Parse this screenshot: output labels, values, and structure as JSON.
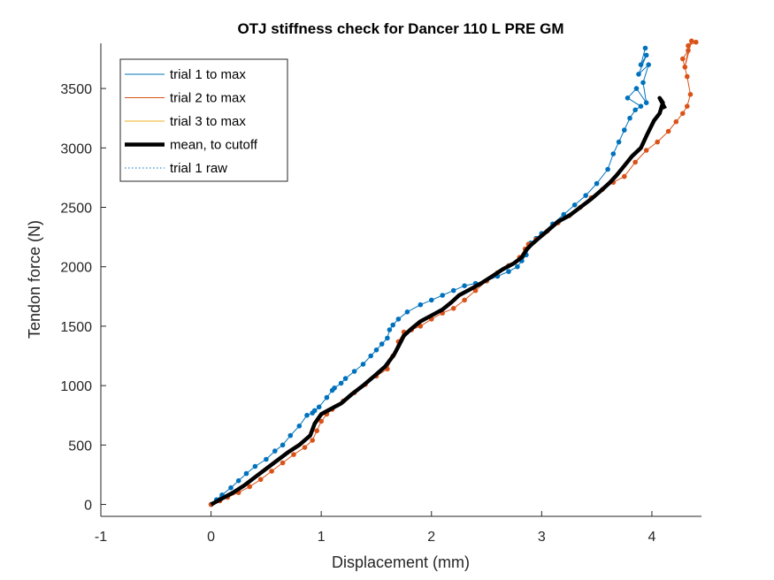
{
  "chart_data": {
    "type": "line",
    "title": "OTJ stiffness check for Dancer 110 L PRE GM",
    "xlabel": "Displacement (mm)",
    "ylabel": "Tendon force (N)",
    "xlim": [
      -1,
      4.45
    ],
    "ylim": [
      -100,
      3880
    ],
    "xticks": [
      -1,
      0,
      1,
      2,
      3,
      4
    ],
    "yticks": [
      0,
      500,
      1000,
      1500,
      2000,
      2500,
      3000,
      3500
    ],
    "xtick_labels": [
      "-1",
      "0",
      "1",
      "2",
      "3",
      "4"
    ],
    "ytick_labels": [
      "0",
      "500",
      "1000",
      "1500",
      "2000",
      "2500",
      "3000",
      "3500"
    ],
    "grid": false,
    "legend_position": "top-left",
    "series": [
      {
        "name": "trial 1 to max",
        "color": "#0072BD",
        "style": "solid-with-markers",
        "x": [
          0,
          0.05,
          0.1,
          0.18,
          0.25,
          0.32,
          0.4,
          0.5,
          0.58,
          0.65,
          0.72,
          0.8,
          0.87,
          0.92,
          0.94,
          0.98,
          1.05,
          1.1,
          1.12,
          1.18,
          1.22,
          1.3,
          1.38,
          1.45,
          1.5,
          1.55,
          1.6,
          1.62,
          1.65,
          1.7,
          1.78,
          1.9,
          2.0,
          2.1,
          2.2,
          2.3,
          2.4,
          2.5,
          2.6,
          2.7,
          2.78,
          2.82,
          2.86,
          2.9,
          2.95,
          3.0,
          3.1,
          3.2,
          3.3,
          3.4,
          3.5,
          3.6,
          3.65,
          3.7,
          3.75,
          3.8,
          3.85,
          3.9,
          3.78,
          3.86,
          3.95,
          3.92,
          3.97,
          3.88,
          3.95,
          3.9,
          3.94
        ],
        "y": [
          0,
          40,
          80,
          140,
          200,
          260,
          320,
          380,
          450,
          500,
          580,
          660,
          750,
          770,
          790,
          820,
          900,
          960,
          980,
          1020,
          1060,
          1120,
          1180,
          1250,
          1300,
          1350,
          1400,
          1470,
          1510,
          1560,
          1620,
          1680,
          1720,
          1760,
          1800,
          1840,
          1860,
          1880,
          1920,
          1960,
          2000,
          2050,
          2100,
          2200,
          2240,
          2280,
          2360,
          2440,
          2520,
          2600,
          2700,
          2820,
          2950,
          3050,
          3150,
          3250,
          3320,
          3350,
          3420,
          3500,
          3380,
          3550,
          3700,
          3620,
          3780,
          3700,
          3840
        ]
      },
      {
        "name": "trial 2 to max",
        "color": "#D95319",
        "style": "solid-with-markers",
        "x": [
          0,
          0.08,
          0.15,
          0.25,
          0.35,
          0.45,
          0.55,
          0.65,
          0.75,
          0.85,
          0.92,
          0.96,
          1.0,
          1.05,
          1.1,
          1.2,
          1.3,
          1.4,
          1.5,
          1.6,
          1.65,
          1.7,
          1.75,
          1.82,
          1.9,
          2.0,
          2.1,
          2.2,
          2.3,
          2.4,
          2.5,
          2.6,
          2.7,
          2.8,
          2.85,
          2.88,
          2.95,
          3.05,
          3.15,
          3.25,
          3.35,
          3.45,
          3.55,
          3.65,
          3.75,
          3.85,
          3.95,
          4.05,
          4.15,
          4.22,
          4.28,
          4.32,
          4.35,
          4.32,
          4.28,
          4.33,
          4.3,
          4.36,
          4.33,
          4.4
        ],
        "y": [
          0,
          30,
          60,
          100,
          150,
          210,
          280,
          350,
          420,
          480,
          540,
          620,
          700,
          760,
          800,
          870,
          940,
          1010,
          1080,
          1140,
          1250,
          1370,
          1450,
          1470,
          1500,
          1560,
          1610,
          1650,
          1720,
          1800,
          1880,
          1950,
          2010,
          2080,
          2150,
          2190,
          2230,
          2300,
          2370,
          2430,
          2500,
          2580,
          2650,
          2710,
          2760,
          2880,
          2980,
          3050,
          3140,
          3220,
          3290,
          3350,
          3450,
          3600,
          3750,
          3820,
          3680,
          3900,
          3860,
          3890
        ]
      },
      {
        "name": "trial 3 to max",
        "color": "#EDB120",
        "style": "solid",
        "x": [],
        "y": []
      },
      {
        "name": "mean, to cutoff",
        "color": "#000000",
        "style": "thick-solid",
        "x": [
          0,
          0.1,
          0.2,
          0.3,
          0.4,
          0.5,
          0.6,
          0.7,
          0.8,
          0.9,
          0.94,
          0.97,
          1.0,
          1.08,
          1.18,
          1.28,
          1.38,
          1.48,
          1.58,
          1.66,
          1.7,
          1.75,
          1.82,
          1.9,
          2.0,
          2.1,
          2.18,
          2.25,
          2.35,
          2.45,
          2.55,
          2.65,
          2.75,
          2.82,
          2.86,
          2.9,
          2.96,
          3.05,
          3.15,
          3.25,
          3.35,
          3.45,
          3.55,
          3.62,
          3.68,
          3.75,
          3.82,
          3.9,
          3.96,
          4.02,
          4.07,
          4.1,
          4.07,
          4.12
        ],
        "y": [
          0,
          50,
          100,
          160,
          230,
          300,
          370,
          440,
          500,
          580,
          680,
          720,
          760,
          800,
          850,
          930,
          1000,
          1080,
          1160,
          1260,
          1330,
          1420,
          1480,
          1540,
          1590,
          1640,
          1700,
          1760,
          1810,
          1860,
          1920,
          1980,
          2030,
          2080,
          2140,
          2180,
          2230,
          2300,
          2380,
          2430,
          2500,
          2570,
          2650,
          2710,
          2770,
          2850,
          2930,
          3000,
          3120,
          3230,
          3290,
          3380,
          3420,
          3330
        ]
      },
      {
        "name": "trial 1 raw",
        "color": "#0072BD",
        "style": "dotted",
        "x": [],
        "y": []
      }
    ]
  }
}
